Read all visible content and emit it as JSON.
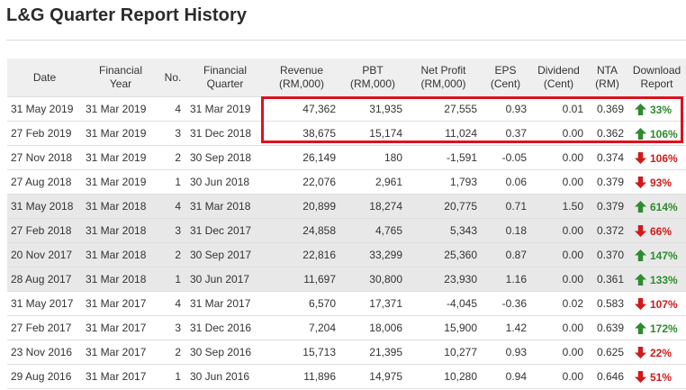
{
  "page": {
    "title": "L&G Quarter Report History"
  },
  "colors": {
    "up": "#2e8b2e",
    "down": "#d11a1a",
    "highlight": "#e0101e"
  },
  "table": {
    "headers": {
      "date": "Date",
      "fy": [
        "Financial",
        "Year"
      ],
      "no": "No.",
      "fq": [
        "Financial",
        "Quarter"
      ],
      "revenue": [
        "Revenue",
        "(RM,000)"
      ],
      "pbt": [
        "PBT",
        "(RM,000)"
      ],
      "np": [
        "Net Profit",
        "(RM,000)"
      ],
      "eps": [
        "EPS",
        "(Cent)"
      ],
      "div": [
        "Dividend",
        "(Cent)"
      ],
      "nta": [
        "NTA",
        "(RM)"
      ],
      "dl": [
        "Download",
        "Report"
      ]
    },
    "rows": [
      {
        "date": "31 May 2019",
        "fy": "31 Mar 2019",
        "no": "4",
        "fq": "31 Mar 2019",
        "revenue": "47,362",
        "pbt": "31,935",
        "np": "27,555",
        "eps": "0.93",
        "div": "0.01",
        "nta": "0.369",
        "dir": "up",
        "pct": "33%"
      },
      {
        "date": "27 Feb 2019",
        "fy": "31 Mar 2019",
        "no": "3",
        "fq": "31 Dec 2018",
        "revenue": "38,675",
        "pbt": "15,174",
        "np": "11,024",
        "eps": "0.37",
        "div": "0.00",
        "nta": "0.362",
        "dir": "up",
        "pct": "106%"
      },
      {
        "date": "27 Nov 2018",
        "fy": "31 Mar 2019",
        "no": "2",
        "fq": "30 Sep 2018",
        "revenue": "26,149",
        "pbt": "180",
        "np": "-1,591",
        "eps": "-0.05",
        "div": "0.00",
        "nta": "0.374",
        "dir": "down",
        "pct": "106%"
      },
      {
        "date": "27 Aug 2018",
        "fy": "31 Mar 2019",
        "no": "1",
        "fq": "30 Jun 2018",
        "revenue": "22,076",
        "pbt": "2,961",
        "np": "1,793",
        "eps": "0.06",
        "div": "0.00",
        "nta": "0.379",
        "dir": "down",
        "pct": "93%"
      },
      {
        "date": "31 May 2018",
        "fy": "31 Mar 2018",
        "no": "4",
        "fq": "31 Mar 2018",
        "revenue": "20,899",
        "pbt": "18,274",
        "np": "20,775",
        "eps": "0.71",
        "div": "1.50",
        "nta": "0.379",
        "dir": "up",
        "pct": "614%"
      },
      {
        "date": "27 Feb 2018",
        "fy": "31 Mar 2018",
        "no": "3",
        "fq": "31 Dec 2017",
        "revenue": "24,858",
        "pbt": "4,765",
        "np": "5,343",
        "eps": "0.18",
        "div": "0.00",
        "nta": "0.372",
        "dir": "down",
        "pct": "66%"
      },
      {
        "date": "20 Nov 2017",
        "fy": "31 Mar 2018",
        "no": "2",
        "fq": "30 Sep 2017",
        "revenue": "22,816",
        "pbt": "33,299",
        "np": "25,360",
        "eps": "0.87",
        "div": "0.00",
        "nta": "0.370",
        "dir": "up",
        "pct": "147%"
      },
      {
        "date": "28 Aug 2017",
        "fy": "31 Mar 2018",
        "no": "1",
        "fq": "30 Jun 2017",
        "revenue": "11,697",
        "pbt": "30,800",
        "np": "23,930",
        "eps": "1.16",
        "div": "0.00",
        "nta": "0.361",
        "dir": "up",
        "pct": "133%"
      },
      {
        "date": "31 May 2017",
        "fy": "31 Mar 2017",
        "no": "4",
        "fq": "31 Mar 2017",
        "revenue": "6,570",
        "pbt": "17,371",
        "np": "-4,045",
        "eps": "-0.36",
        "div": "0.02",
        "nta": "0.583",
        "dir": "down",
        "pct": "107%"
      },
      {
        "date": "27 Feb 2017",
        "fy": "31 Mar 2017",
        "no": "3",
        "fq": "31 Dec 2016",
        "revenue": "7,204",
        "pbt": "18,006",
        "np": "15,900",
        "eps": "1.42",
        "div": "0.00",
        "nta": "0.639",
        "dir": "up",
        "pct": "172%"
      },
      {
        "date": "23 Nov 2016",
        "fy": "31 Mar 2017",
        "no": "2",
        "fq": "30 Sep 2016",
        "revenue": "15,713",
        "pbt": "21,395",
        "np": "10,277",
        "eps": "0.93",
        "div": "0.00",
        "nta": "0.625",
        "dir": "down",
        "pct": "22%"
      },
      {
        "date": "29 Aug 2016",
        "fy": "31 Mar 2017",
        "no": "1",
        "fq": "30 Jun 2016",
        "revenue": "11,896",
        "pbt": "14,975",
        "np": "10,280",
        "eps": "0.94",
        "div": "0.00",
        "nta": "0.646",
        "dir": "down",
        "pct": "51%"
      }
    ],
    "shaded_rows": [
      4,
      5,
      6,
      7
    ]
  }
}
